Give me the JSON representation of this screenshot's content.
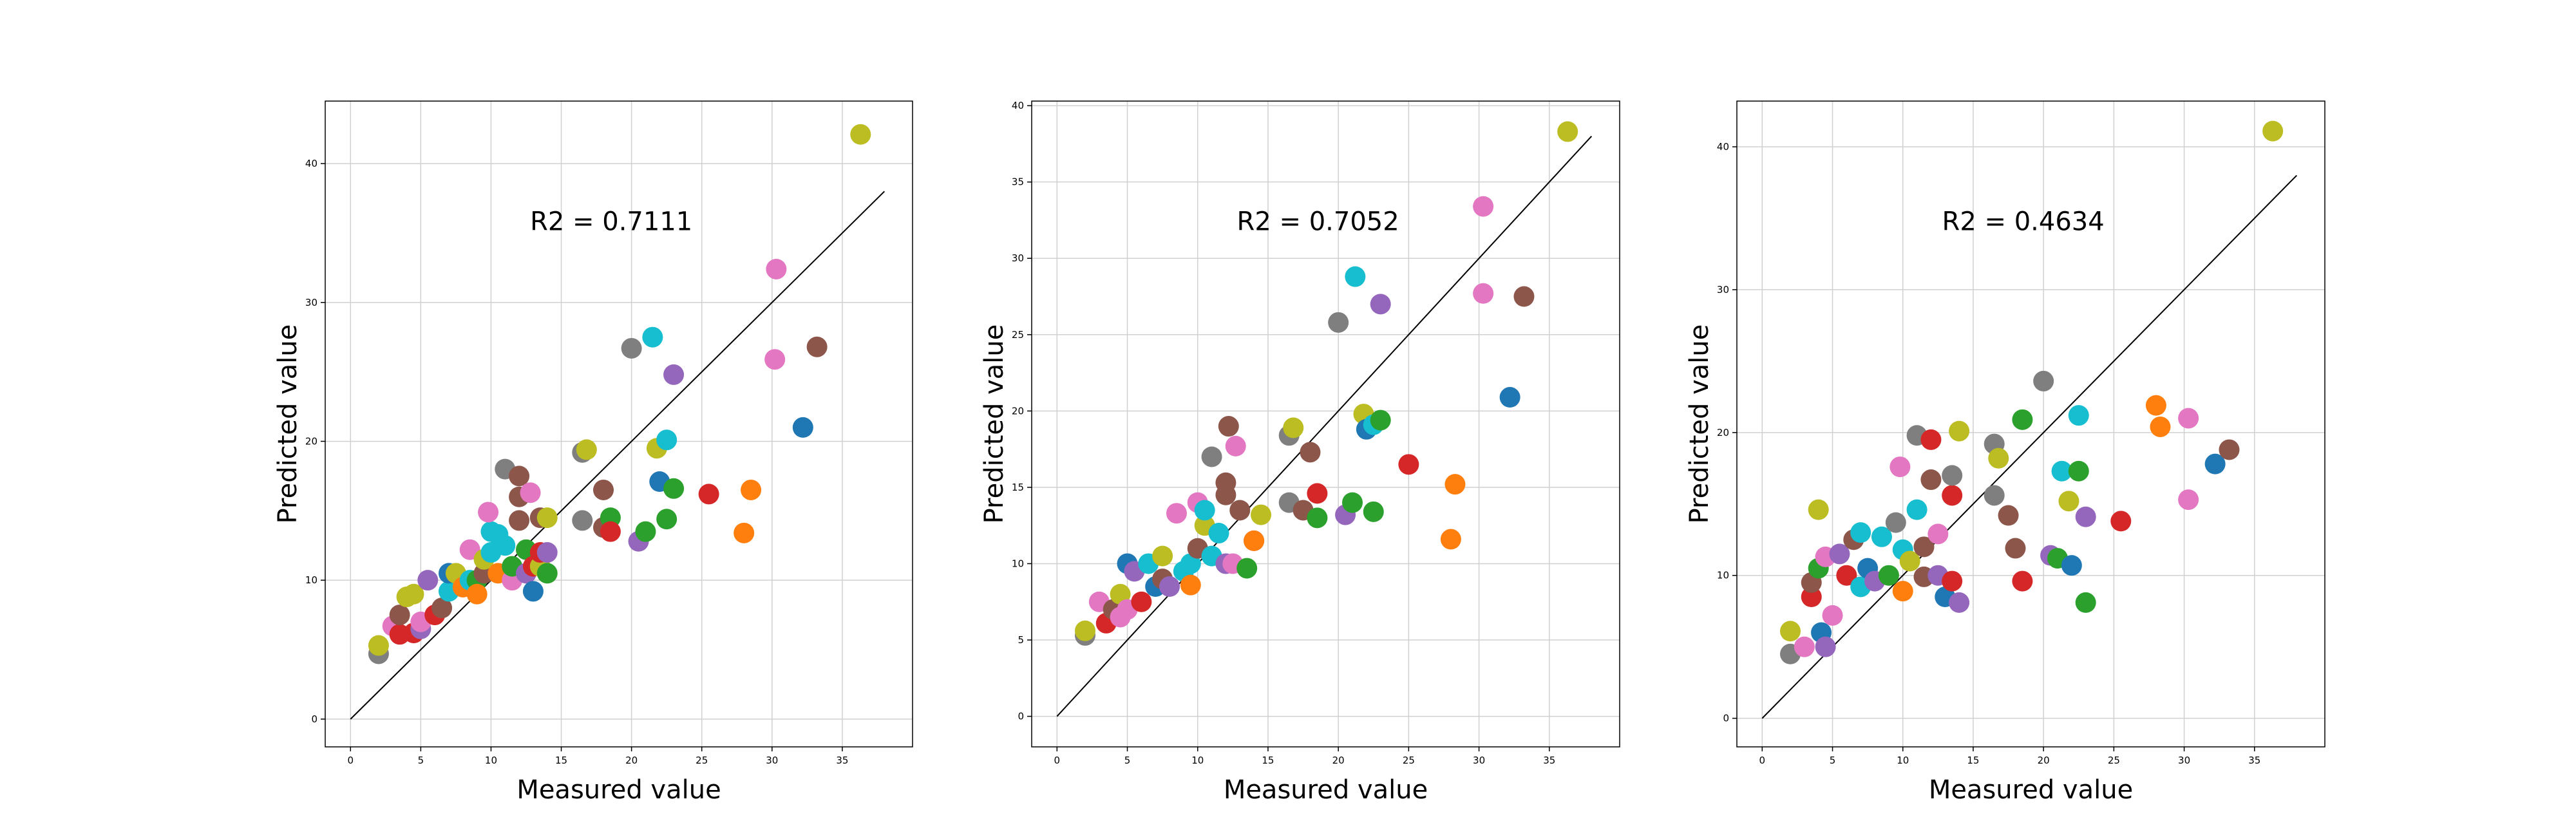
{
  "colors": [
    "#1f77b4",
    "#ff7f0e",
    "#2ca02c",
    "#d62728",
    "#9467bd",
    "#8c564b",
    "#e377c2",
    "#7f7f7f",
    "#bcbd22",
    "#17becf"
  ],
  "chart_data": [
    {
      "type": "scatter",
      "xlabel": "Measured value",
      "ylabel": "Predicted value",
      "annotation": "R2 = 0.7111",
      "xlim": [
        -1.8,
        40
      ],
      "ylim": [
        -2,
        44.5
      ],
      "xticks": [
        "0",
        "5",
        "10",
        "15",
        "20",
        "25",
        "30",
        "35"
      ],
      "yticks": [
        "0",
        "10",
        "20",
        "30",
        "40"
      ],
      "grid": true,
      "reference_line": [
        [
          0,
          0
        ],
        [
          38,
          38
        ]
      ],
      "points": [
        [
          2.0,
          4.7,
          7
        ],
        [
          2.0,
          5.3,
          8
        ],
        [
          3.0,
          6.7,
          6
        ],
        [
          3.5,
          6.1,
          3
        ],
        [
          3.5,
          7.5,
          5
        ],
        [
          4.0,
          8.8,
          8
        ],
        [
          4.5,
          6.2,
          3
        ],
        [
          4.5,
          9.0,
          8
        ],
        [
          5.0,
          6.5,
          4
        ],
        [
          5.0,
          7.0,
          6
        ],
        [
          5.5,
          10.0,
          4
        ],
        [
          6.0,
          7.5,
          3
        ],
        [
          6.5,
          8.0,
          5
        ],
        [
          7.0,
          9.2,
          9
        ],
        [
          7.0,
          10.5,
          0
        ],
        [
          7.5,
          10.5,
          8
        ],
        [
          8.0,
          9.5,
          1
        ],
        [
          8.5,
          10.0,
          9
        ],
        [
          8.5,
          12.2,
          6
        ],
        [
          9.0,
          10.0,
          2
        ],
        [
          9.0,
          9.0,
          1
        ],
        [
          9.5,
          10.5,
          5
        ],
        [
          9.5,
          11.5,
          8
        ],
        [
          10.0,
          13.5,
          9
        ],
        [
          10.0,
          12.0,
          9
        ],
        [
          9.8,
          14.9,
          6
        ],
        [
          10.5,
          10.5,
          1
        ],
        [
          10.5,
          13.3,
          9
        ],
        [
          11.0,
          12.5,
          9
        ],
        [
          11.0,
          18.0,
          7
        ],
        [
          11.5,
          10.0,
          6
        ],
        [
          11.5,
          11.0,
          2
        ],
        [
          12.0,
          16.0,
          5
        ],
        [
          12.0,
          17.5,
          5
        ],
        [
          12.0,
          14.3,
          5
        ],
        [
          12.5,
          10.5,
          4
        ],
        [
          12.5,
          12.2,
          2
        ],
        [
          12.8,
          16.3,
          6
        ],
        [
          13.0,
          9.2,
          0
        ],
        [
          13.0,
          11.0,
          3
        ],
        [
          13.5,
          11.0,
          8
        ],
        [
          13.5,
          12.0,
          3
        ],
        [
          13.5,
          14.5,
          5
        ],
        [
          14.0,
          14.5,
          8
        ],
        [
          14.0,
          10.5,
          2
        ],
        [
          14.0,
          12.0,
          4
        ],
        [
          16.5,
          14.3,
          7
        ],
        [
          16.5,
          19.2,
          7
        ],
        [
          16.8,
          19.4,
          8
        ],
        [
          18.0,
          13.8,
          5
        ],
        [
          18.0,
          16.5,
          5
        ],
        [
          18.5,
          14.5,
          2
        ],
        [
          18.5,
          13.5,
          3
        ],
        [
          20.0,
          26.7,
          7
        ],
        [
          20.5,
          12.8,
          4
        ],
        [
          21.0,
          13.5,
          2
        ],
        [
          21.5,
          27.5,
          9
        ],
        [
          21.8,
          19.5,
          8
        ],
        [
          22.0,
          17.1,
          0
        ],
        [
          22.5,
          20.1,
          9
        ],
        [
          22.5,
          14.4,
          2
        ],
        [
          23.0,
          16.6,
          2
        ],
        [
          23.0,
          24.8,
          4
        ],
        [
          25.5,
          16.2,
          3
        ],
        [
          28.0,
          13.4,
          1
        ],
        [
          28.5,
          16.5,
          1
        ],
        [
          30.2,
          25.9,
          6
        ],
        [
          30.3,
          32.4,
          6
        ],
        [
          32.2,
          21.0,
          0
        ],
        [
          33.2,
          26.8,
          5
        ],
        [
          36.3,
          42.1,
          8
        ]
      ]
    },
    {
      "type": "scatter",
      "xlabel": "Measured value",
      "ylabel": "Predicted value",
      "annotation": "R2 = 0.7052",
      "xlim": [
        -1.8,
        40
      ],
      "ylim": [
        -2,
        40.3
      ],
      "xticks": [
        "0",
        "5",
        "10",
        "15",
        "20",
        "25",
        "30",
        "35"
      ],
      "yticks": [
        "0",
        "5",
        "10",
        "15",
        "20",
        "25",
        "30",
        "35",
        "40"
      ],
      "grid": true,
      "reference_line": [
        [
          0,
          0
        ],
        [
          38,
          38
        ]
      ],
      "points": [
        [
          2.0,
          5.3,
          7
        ],
        [
          2.0,
          5.6,
          8
        ],
        [
          3.0,
          7.5,
          6
        ],
        [
          3.5,
          6.1,
          3
        ],
        [
          4.0,
          7.0,
          5
        ],
        [
          4.5,
          8.0,
          8
        ],
        [
          4.5,
          6.5,
          6
        ],
        [
          5.0,
          7.0,
          6
        ],
        [
          5.0,
          10.0,
          0
        ],
        [
          5.5,
          9.5,
          4
        ],
        [
          6.0,
          7.5,
          3
        ],
        [
          6.5,
          10.0,
          9
        ],
        [
          7.0,
          8.5,
          0
        ],
        [
          7.5,
          10.5,
          8
        ],
        [
          7.5,
          9.0,
          5
        ],
        [
          8.0,
          8.5,
          4
        ],
        [
          8.5,
          13.3,
          6
        ],
        [
          9.0,
          9.5,
          9
        ],
        [
          9.5,
          10.0,
          9
        ],
        [
          9.5,
          8.6,
          1
        ],
        [
          10.0,
          11.0,
          5
        ],
        [
          10.0,
          14.0,
          6
        ],
        [
          10.5,
          12.5,
          8
        ],
        [
          10.5,
          13.5,
          9
        ],
        [
          11.0,
          10.5,
          9
        ],
        [
          11.0,
          17.0,
          7
        ],
        [
          11.5,
          12.0,
          9
        ],
        [
          12.0,
          10.0,
          4
        ],
        [
          12.0,
          15.3,
          5
        ],
        [
          12.5,
          10.0,
          6
        ],
        [
          12.0,
          14.5,
          5
        ],
        [
          12.2,
          19.0,
          5
        ],
        [
          12.7,
          17.7,
          6
        ],
        [
          13.0,
          13.5,
          5
        ],
        [
          13.5,
          9.7,
          2
        ],
        [
          14.0,
          11.5,
          3
        ],
        [
          14.0,
          11.5,
          1
        ],
        [
          14.5,
          13.2,
          8
        ],
        [
          16.5,
          14.0,
          7
        ],
        [
          16.5,
          18.4,
          7
        ],
        [
          16.8,
          18.9,
          8
        ],
        [
          17.5,
          13.5,
          5
        ],
        [
          18.0,
          17.3,
          5
        ],
        [
          18.5,
          13.0,
          2
        ],
        [
          18.5,
          14.6,
          3
        ],
        [
          20.0,
          25.8,
          7
        ],
        [
          20.5,
          13.2,
          4
        ],
        [
          21.0,
          14.0,
          2
        ],
        [
          21.2,
          28.8,
          9
        ],
        [
          21.8,
          19.8,
          8
        ],
        [
          22.0,
          18.8,
          0
        ],
        [
          22.5,
          19.1,
          9
        ],
        [
          22.5,
          13.4,
          2
        ],
        [
          23.0,
          19.4,
          2
        ],
        [
          23.0,
          27.0,
          4
        ],
        [
          25.0,
          16.5,
          3
        ],
        [
          28.0,
          11.6,
          1
        ],
        [
          28.3,
          15.2,
          1
        ],
        [
          30.3,
          27.7,
          6
        ],
        [
          30.3,
          33.4,
          6
        ],
        [
          32.2,
          20.9,
          0
        ],
        [
          33.2,
          27.5,
          5
        ],
        [
          36.3,
          38.3,
          8
        ]
      ]
    },
    {
      "type": "scatter",
      "xlabel": "Measured value",
      "ylabel": "Predicted value",
      "annotation": "R2 = 0.4634",
      "xlim": [
        -1.8,
        40
      ],
      "ylim": [
        -2,
        43.2
      ],
      "xticks": [
        "0",
        "5",
        "10",
        "15",
        "20",
        "25",
        "30",
        "35"
      ],
      "yticks": [
        "0",
        "10",
        "20",
        "30",
        "40"
      ],
      "grid": true,
      "reference_line": [
        [
          0,
          0
        ],
        [
          38,
          38
        ]
      ],
      "points": [
        [
          2.0,
          4.5,
          7
        ],
        [
          2.0,
          6.1,
          8
        ],
        [
          3.0,
          5.0,
          6
        ],
        [
          3.5,
          8.5,
          3
        ],
        [
          3.5,
          9.5,
          5
        ],
        [
          4.0,
          14.6,
          8
        ],
        [
          4.0,
          10.5,
          2
        ],
        [
          4.2,
          6.0,
          0
        ],
        [
          4.5,
          5.0,
          4
        ],
        [
          4.5,
          11.3,
          6
        ],
        [
          5.0,
          7.2,
          6
        ],
        [
          5.5,
          11.5,
          4
        ],
        [
          6.0,
          10.0,
          3
        ],
        [
          6.5,
          12.5,
          5
        ],
        [
          7.0,
          9.2,
          9
        ],
        [
          7.0,
          13.0,
          9
        ],
        [
          7.5,
          10.5,
          0
        ],
        [
          8.0,
          9.6,
          4
        ],
        [
          8.5,
          12.7,
          9
        ],
        [
          9.0,
          10.0,
          2
        ],
        [
          9.5,
          13.7,
          7
        ],
        [
          9.8,
          17.6,
          6
        ],
        [
          10.0,
          11.8,
          9
        ],
        [
          10.0,
          8.9,
          1
        ],
        [
          10.5,
          11.0,
          8
        ],
        [
          11.0,
          19.8,
          7
        ],
        [
          11.0,
          14.6,
          9
        ],
        [
          11.5,
          9.9,
          5
        ],
        [
          11.5,
          12.0,
          5
        ],
        [
          12.0,
          16.7,
          5
        ],
        [
          12.0,
          19.5,
          3
        ],
        [
          12.5,
          10.0,
          4
        ],
        [
          12.5,
          12.9,
          6
        ],
        [
          13.0,
          8.5,
          0
        ],
        [
          13.5,
          9.6,
          3
        ],
        [
          13.5,
          15.6,
          3
        ],
        [
          13.5,
          17.0,
          7
        ],
        [
          14.0,
          8.1,
          4
        ],
        [
          14.0,
          20.1,
          8
        ],
        [
          16.5,
          15.6,
          7
        ],
        [
          16.5,
          19.2,
          7
        ],
        [
          16.8,
          18.2,
          8
        ],
        [
          17.5,
          14.2,
          5
        ],
        [
          18.0,
          11.9,
          5
        ],
        [
          18.5,
          9.6,
          3
        ],
        [
          18.5,
          20.9,
          2
        ],
        [
          20.0,
          23.6,
          7
        ],
        [
          20.5,
          11.4,
          4
        ],
        [
          21.0,
          11.2,
          2
        ],
        [
          21.3,
          17.3,
          9
        ],
        [
          21.8,
          15.2,
          8
        ],
        [
          22.0,
          10.7,
          0
        ],
        [
          22.5,
          17.3,
          2
        ],
        [
          22.5,
          21.2,
          9
        ],
        [
          23.0,
          14.1,
          4
        ],
        [
          23.0,
          8.1,
          2
        ],
        [
          25.5,
          13.8,
          3
        ],
        [
          28.0,
          21.9,
          1
        ],
        [
          28.3,
          20.4,
          1
        ],
        [
          30.3,
          15.3,
          6
        ],
        [
          30.3,
          21.0,
          6
        ],
        [
          32.2,
          17.8,
          0
        ],
        [
          33.2,
          18.8,
          5
        ],
        [
          36.3,
          41.1,
          8
        ]
      ]
    }
  ]
}
